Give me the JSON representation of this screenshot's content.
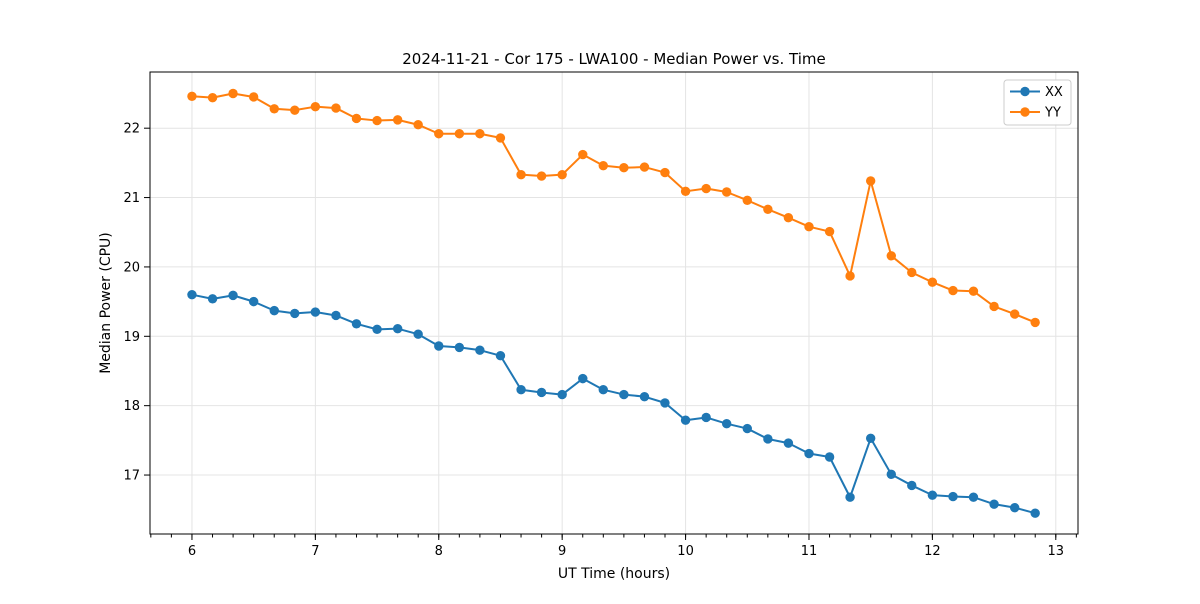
{
  "title": "2024-11-21 - Cor 175 - LWA100 - Median Power vs. Time",
  "axes": {
    "xlabel": "UT Time (hours)",
    "ylabel": "Median Power (CPU)"
  },
  "legend": {
    "position": "upper right",
    "items": [
      {
        "label": "XX",
        "color": "#1f77b4"
      },
      {
        "label": "YY",
        "color": "#ff7f0e"
      }
    ]
  },
  "colors": {
    "series_xx": "#1f77b4",
    "series_yy": "#ff7f0e",
    "grid": "#e4e4e4",
    "spine": "#000000",
    "background": "#ffffff"
  },
  "chart_data": {
    "type": "line",
    "title": "2024-11-21 - Cor 175 - LWA100 - Median Power vs. Time",
    "xlabel": "UT Time (hours)",
    "ylabel": "Median Power (CPU)",
    "xlim": [
      5.66,
      13.18
    ],
    "ylim": [
      16.15,
      22.81
    ],
    "x_ticks": [
      6,
      7,
      8,
      9,
      10,
      11,
      12,
      13
    ],
    "y_ticks": [
      17,
      18,
      19,
      20,
      21,
      22
    ],
    "x_minor_step": 0.1666667,
    "grid": true,
    "legend_position": "upper right",
    "marker": "o",
    "x": [
      6.0,
      6.167,
      6.333,
      6.5,
      6.667,
      6.833,
      7.0,
      7.167,
      7.333,
      7.5,
      7.667,
      7.833,
      8.0,
      8.167,
      8.333,
      8.5,
      8.667,
      8.833,
      9.0,
      9.167,
      9.333,
      9.5,
      9.667,
      9.833,
      10.0,
      10.167,
      10.333,
      10.5,
      10.667,
      10.833,
      11.0,
      11.167,
      11.333,
      11.5,
      11.667,
      11.833,
      12.0,
      12.167,
      12.333,
      12.5,
      12.667,
      12.833
    ],
    "series": [
      {
        "name": "XX",
        "color": "#1f77b4",
        "values": [
          19.6,
          19.54,
          19.59,
          19.5,
          19.37,
          19.33,
          19.35,
          19.3,
          19.18,
          19.1,
          19.11,
          19.03,
          18.86,
          18.84,
          18.8,
          18.72,
          18.23,
          18.19,
          18.16,
          18.39,
          18.23,
          18.16,
          18.13,
          18.04,
          17.79,
          17.83,
          17.74,
          17.67,
          17.52,
          17.46,
          17.31,
          17.26,
          16.68,
          17.53,
          17.01,
          16.85,
          16.71,
          16.69,
          16.68,
          16.58,
          16.53,
          16.45
        ]
      },
      {
        "name": "YY",
        "color": "#ff7f0e",
        "values": [
          22.46,
          22.44,
          22.5,
          22.45,
          22.28,
          22.26,
          22.31,
          22.29,
          22.14,
          22.11,
          22.12,
          22.05,
          21.92,
          21.92,
          21.92,
          21.86,
          21.33,
          21.31,
          21.33,
          21.62,
          21.46,
          21.43,
          21.44,
          21.36,
          21.09,
          21.13,
          21.08,
          20.96,
          20.83,
          20.71,
          20.58,
          20.51,
          19.87,
          21.24,
          20.16,
          19.92,
          19.78,
          19.66,
          19.65,
          19.43,
          19.32,
          19.2
        ]
      }
    ]
  }
}
